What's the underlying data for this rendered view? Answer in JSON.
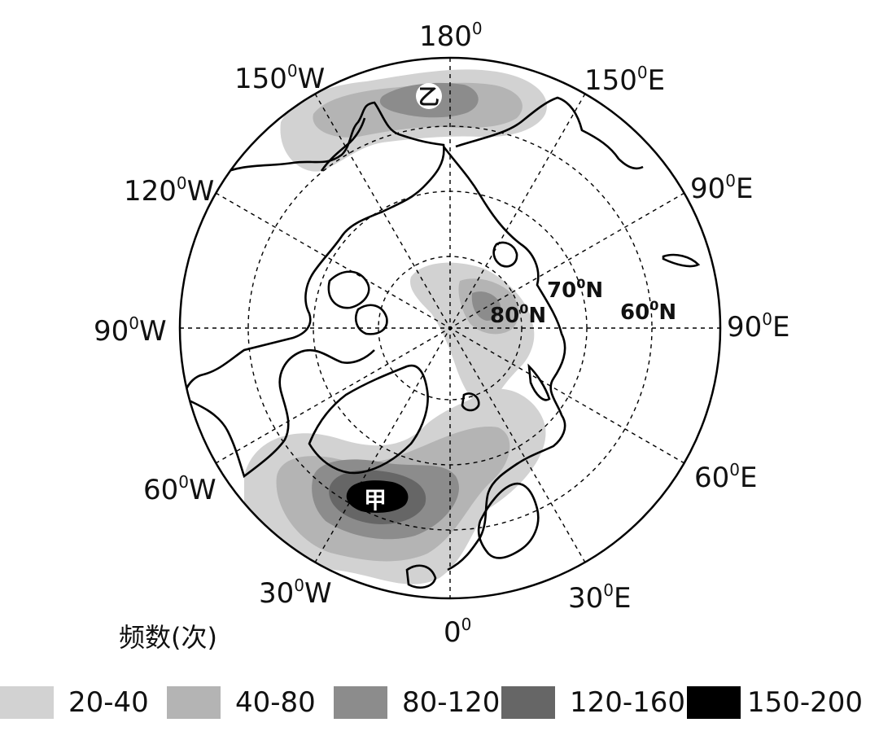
{
  "map": {
    "longitude_labels": {
      "top": "180",
      "lon_150W": "150",
      "lon_150E": "150",
      "lon_120W": "120",
      "lon_90E_upper": "90",
      "lon_90W": "90",
      "lon_90E": "90",
      "lon_60W": "60",
      "lon_60E": "60",
      "lon_30W": "30",
      "lon_30E": "30",
      "bottom": "0"
    },
    "deg_mark": "0",
    "dir_W": "W",
    "dir_E": "E",
    "latitude_labels": {
      "lat70": "70",
      "lat80": "80",
      "lat60": "60",
      "dir_N": "N"
    },
    "place_jia": "甲",
    "place_yi": "乙"
  },
  "legend": {
    "unit": "频数(次)",
    "items": [
      {
        "label": "20-40",
        "color": "#d2d2d2"
      },
      {
        "label": "40-80",
        "color": "#b4b4b4"
      },
      {
        "label": "80-120",
        "color": "#8c8c8c"
      },
      {
        "label": "120-160",
        "color": "#666666"
      },
      {
        "label": "150-200",
        "color": "#000000"
      }
    ]
  }
}
